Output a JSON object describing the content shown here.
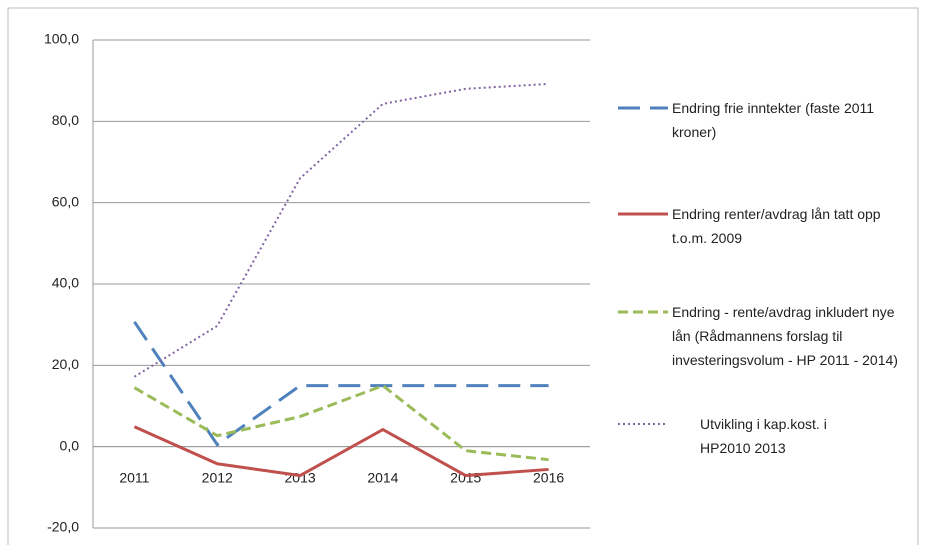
{
  "chart_data": {
    "type": "line",
    "categories": [
      "2011",
      "2012",
      "2013",
      "2014",
      "2015",
      "2016"
    ],
    "series": [
      {
        "name": "Endring frie inntekter (faste 2011 kroner)",
        "color": "#4f81bd",
        "dash": "dashed",
        "values": [
          30.7,
          0.5,
          15,
          15,
          15,
          15
        ]
      },
      {
        "name": "Endring renter/avdrag lån tatt opp t.o.m. 2009",
        "color": "#c0504d",
        "dash": "solid",
        "values": [
          4.9,
          -4.2,
          -7.1,
          4.2,
          -7.1,
          -5.6
        ]
      },
      {
        "name": "Endring - rente/avdrag inkludert nye lån (Rådmannens forslag til investeringsvolum - HP 2011 - 2014)",
        "color": "#9bbb59",
        "dash": "short-dashed",
        "values": [
          14.5,
          2.7,
          7.4,
          15,
          -1,
          -3.2
        ]
      },
      {
        "name": "Utvikling i kap.kost. i HP2010 2013",
        "color": "#8064a2",
        "dash": "dotted",
        "values": [
          17.2,
          29.7,
          66,
          84.3,
          88,
          89.2
        ]
      }
    ],
    "ylim": [
      -20,
      100
    ],
    "yticks": [
      {
        "value": -20,
        "label": "-20,0"
      },
      {
        "value": 0,
        "label": "0,0"
      },
      {
        "value": 20,
        "label": "20,0"
      },
      {
        "value": 40,
        "label": "40,0"
      },
      {
        "value": 60,
        "label": "60,0"
      },
      {
        "value": 80,
        "label": "80,0"
      },
      {
        "value": 100,
        "label": "100,0"
      }
    ],
    "grid": true,
    "legend": "right"
  }
}
